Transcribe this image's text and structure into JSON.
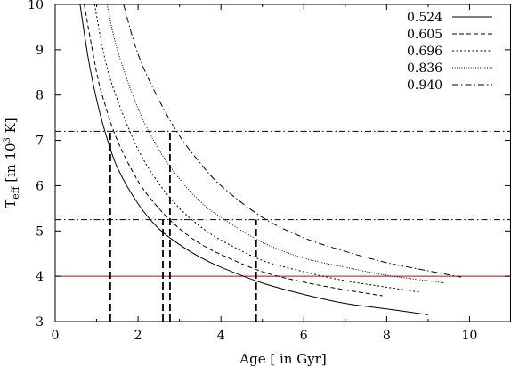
{
  "chart_data": {
    "type": "line",
    "title": "",
    "xlabel": "Age [ in Gyr]",
    "ylabel": "T_eff [in 10^3 K]",
    "ylabel_parts": {
      "base": "T",
      "sub": "eff",
      "text1": " [in 10",
      "sup": "3",
      "text2": " K]"
    },
    "xlim": [
      0,
      11
    ],
    "ylim": [
      3,
      10
    ],
    "x_ticks": [
      "0",
      "2",
      "4",
      "6",
      "8",
      "10"
    ],
    "y_ticks": [
      "3",
      "4",
      "5",
      "6",
      "7",
      "8",
      "9",
      "10"
    ],
    "grid": false,
    "legend_position": "top-right",
    "series": [
      {
        "name": "0.524",
        "style": "solid",
        "color": "#000000",
        "x": [
          0.6,
          0.8,
          1.0,
          1.2,
          1.5,
          2.0,
          2.5,
          3.0,
          3.5,
          4.0,
          5.0,
          6.0,
          7.0,
          8.0,
          9.0
        ],
        "y": [
          10.0,
          8.8,
          7.9,
          7.2,
          6.4,
          5.6,
          5.05,
          4.7,
          4.42,
          4.2,
          3.85,
          3.6,
          3.4,
          3.28,
          3.15
        ]
      },
      {
        "name": "0.605",
        "style": "dashed",
        "color": "#000000",
        "x": [
          0.7,
          1.0,
          1.2,
          1.5,
          2.0,
          2.5,
          3.0,
          3.5,
          4.0,
          5.0,
          6.0,
          7.0,
          7.9
        ],
        "y": [
          10.0,
          8.5,
          7.8,
          7.0,
          6.1,
          5.5,
          5.05,
          4.72,
          4.48,
          4.1,
          3.87,
          3.7,
          3.57
        ]
      },
      {
        "name": "0.696",
        "style": "dotted",
        "color": "#000000",
        "x": [
          0.95,
          1.2,
          1.5,
          2.0,
          2.5,
          3.0,
          3.5,
          4.0,
          5.0,
          6.0,
          7.0,
          8.0,
          8.8
        ],
        "y": [
          10.0,
          8.8,
          7.9,
          6.8,
          6.05,
          5.5,
          5.1,
          4.8,
          4.35,
          4.1,
          3.9,
          3.76,
          3.65
        ]
      },
      {
        "name": "0.836",
        "style": "dense-dotted",
        "color": "#000000",
        "x": [
          1.25,
          1.5,
          2.0,
          2.5,
          3.0,
          3.5,
          4.0,
          5.0,
          6.0,
          7.0,
          8.0,
          9.0,
          9.4
        ],
        "y": [
          10.0,
          9.0,
          7.7,
          6.8,
          6.15,
          5.65,
          5.3,
          4.75,
          4.4,
          4.2,
          4.02,
          3.9,
          3.85
        ]
      },
      {
        "name": "0.940",
        "style": "dash-dot",
        "color": "#000000",
        "x": [
          1.65,
          2.0,
          2.5,
          3.0,
          3.5,
          4.0,
          5.0,
          6.0,
          7.0,
          8.0,
          9.0,
          9.8
        ],
        "y": [
          10.0,
          8.9,
          7.9,
          7.1,
          6.5,
          6.0,
          5.3,
          4.85,
          4.55,
          4.3,
          4.12,
          3.98
        ]
      }
    ],
    "reference_lines": [
      {
        "axis": "y",
        "value": 7.2,
        "style": "dash-dot",
        "color": "#000000"
      },
      {
        "axis": "y",
        "value": 5.25,
        "style": "dash-dot",
        "color": "#000000"
      },
      {
        "axis": "y",
        "value": 4.0,
        "style": "solid",
        "color": "#cc0000"
      },
      {
        "axis": "x",
        "value": 1.33,
        "to_y": 7.2,
        "style": "bold-dashed",
        "color": "#000000"
      },
      {
        "axis": "x",
        "value": 2.6,
        "to_y": 5.25,
        "style": "bold-dashed",
        "color": "#000000"
      },
      {
        "axis": "x",
        "value": 2.77,
        "to_y": 7.2,
        "style": "bold-dashed",
        "color": "#000000"
      },
      {
        "axis": "x",
        "value": 4.85,
        "to_y": 5.25,
        "style": "bold-dashed",
        "color": "#000000"
      }
    ]
  }
}
